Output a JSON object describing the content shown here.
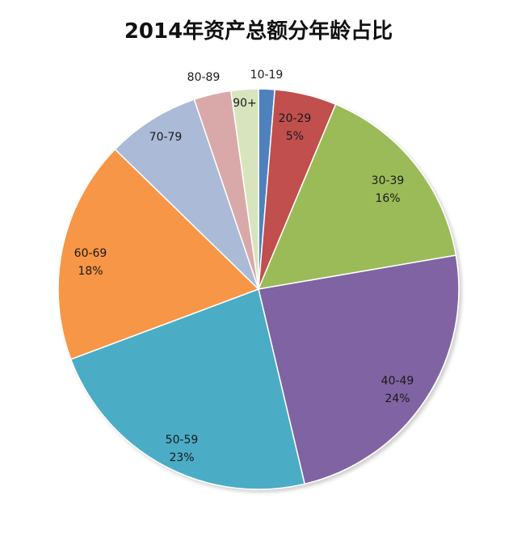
{
  "chart_data": {
    "type": "pie",
    "title": "2014年资产总额分年龄占比",
    "start_angle_deg": 0,
    "direction": "clockwise",
    "slices": [
      {
        "category": "10-19",
        "value": 1.3,
        "color": "#4f81bd",
        "label_name": "10-19",
        "label_pct": ""
      },
      {
        "category": "20-29",
        "value": 5.0,
        "color": "#c0504d",
        "label_name": "20-29",
        "label_pct": "5%"
      },
      {
        "category": "30-39",
        "value": 16.0,
        "color": "#9bbb59",
        "label_name": "30-39",
        "label_pct": "16%"
      },
      {
        "category": "40-49",
        "value": 24.0,
        "color": "#8064a2",
        "label_name": "40-49",
        "label_pct": "24%"
      },
      {
        "category": "50-59",
        "value": 23.0,
        "color": "#4bacc6",
        "label_name": "50-59",
        "label_pct": "23%"
      },
      {
        "category": "60-69",
        "value": 18.0,
        "color": "#f79646",
        "label_name": "60-69",
        "label_pct": "18%"
      },
      {
        "category": "70-79",
        "value": 7.5,
        "color": "#aabad7",
        "label_name": "70-79",
        "label_pct": ""
      },
      {
        "category": "80-89",
        "value": 3.0,
        "color": "#d9a9a9",
        "label_name": "80-89",
        "label_pct": ""
      },
      {
        "category": "90+",
        "value": 2.2,
        "color": "#d7e4bd",
        "label_name": "90+",
        "label_pct": ""
      }
    ]
  }
}
